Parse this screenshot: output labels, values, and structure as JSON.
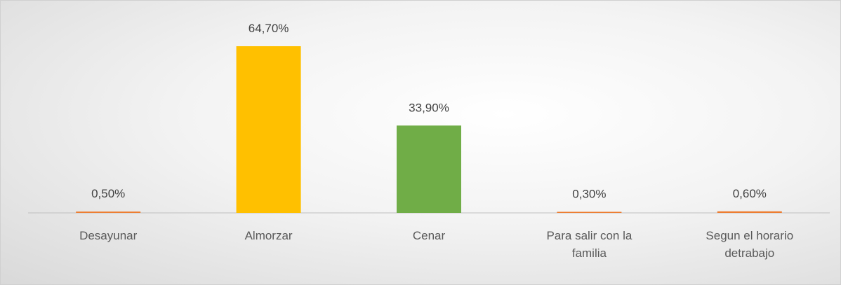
{
  "chart_data": {
    "type": "bar",
    "categories": [
      "Desayunar",
      "Almorzar",
      "Cenar",
      "Para salir con la familia",
      "Segun el horario detrabajo"
    ],
    "values": [
      0.5,
      64.7,
      33.9,
      0.3,
      0.6
    ],
    "value_labels": [
      "0,50%",
      "64,70%",
      "33,90%",
      "0,30%",
      "0,60%"
    ],
    "colors": [
      "#ed7d31",
      "#ffc000",
      "#70ad47",
      "#ed7d31",
      "#ed7d31"
    ]
  }
}
